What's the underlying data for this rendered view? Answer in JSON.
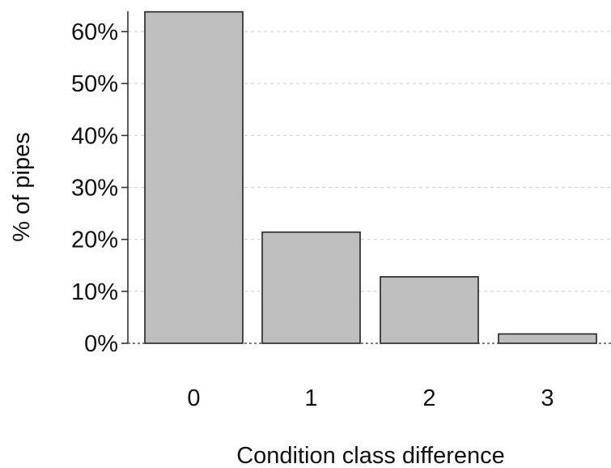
{
  "chart_data": {
    "type": "bar",
    "categories": [
      "0",
      "1",
      "2",
      "3"
    ],
    "values": [
      63.8,
      21.4,
      12.8,
      1.8
    ],
    "xlabel": "Condition class difference",
    "ylabel": "% of pipes",
    "ylim": [
      0,
      65
    ],
    "yticks": [
      0,
      10,
      20,
      30,
      40,
      50,
      60
    ],
    "ytick_labels": [
      "0%",
      "10%",
      "20%",
      "30%",
      "40%",
      "50%",
      "60%"
    ],
    "grid": true,
    "bar_color": "#bebebe",
    "bar_edge_color": "#222222",
    "grid_color": "#d0d0d0"
  }
}
